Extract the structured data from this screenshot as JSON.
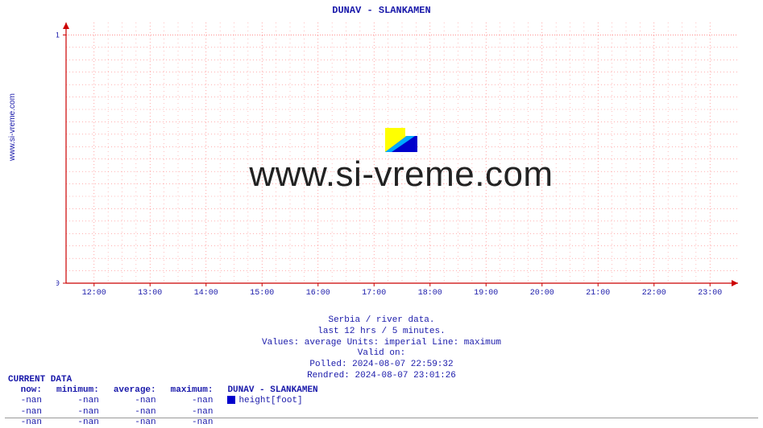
{
  "title": "DUNAV -  SLANKAMEN",
  "ylabel": "www.si-vreme.com",
  "chart": {
    "type": "line",
    "background_color": "#ffffff",
    "grid_major_color": "#ff8080",
    "grid_dot_color": "#ff8080",
    "axis_color": "#cc0000",
    "yticks": [
      0,
      1
    ],
    "ylim": [
      0,
      1.05
    ],
    "xticks": [
      "12:00",
      "13:00",
      "14:00",
      "15:00",
      "16:00",
      "17:00",
      "18:00",
      "19:00",
      "20:00",
      "21:00",
      "22:00",
      "23:00"
    ],
    "tick_label_color": "#1919aa",
    "tick_fontsize": 10,
    "arrow_color": "#cc0000"
  },
  "watermark": {
    "text": "www.si-vreme.com",
    "logo_colors": {
      "tl": "#ffff00",
      "tr": "#ffffff",
      "diag": "#00aaff",
      "br": "#0000cc"
    }
  },
  "caption": {
    "line1": "Serbia / river data.",
    "line2": "last 12 hrs / 5 minutes.",
    "line3": "Values: average  Units: imperial  Line: maximum",
    "line4": "Valid on:",
    "line5": "Polled: 2024-08-07 22:59:32",
    "line6": "Rendred: 2024-08-07 23:01:26"
  },
  "currentData": {
    "header": "CURRENT DATA",
    "columns": [
      "now:",
      "minimum:",
      "average:",
      "maximum:"
    ],
    "seriesLabel": "DUNAV -  SLANKAMEN",
    "legendColor": "#0000cc",
    "metric": "height[foot]",
    "rows": [
      [
        "-nan",
        "-nan",
        "-nan",
        "-nan"
      ],
      [
        "-nan",
        "-nan",
        "-nan",
        "-nan"
      ],
      [
        "-nan",
        "-nan",
        "-nan",
        "-nan"
      ]
    ]
  }
}
